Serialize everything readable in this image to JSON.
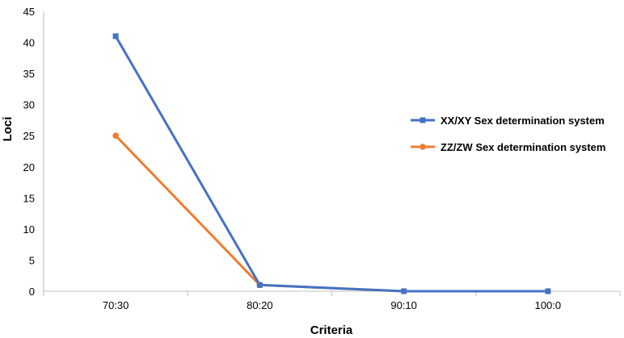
{
  "chart_data": {
    "type": "line",
    "categories": [
      "70:30",
      "80:20",
      "90:10",
      "100:0"
    ],
    "series": [
      {
        "name": "XX/XY Sex determination system",
        "values": [
          41,
          1,
          0,
          0
        ],
        "color": "#4472c4",
        "marker": "square"
      },
      {
        "name": "ZZ/ZW Sex determination system",
        "values": [
          25,
          1,
          0,
          0
        ],
        "color": "#ed7d31",
        "marker": "circle"
      }
    ],
    "xlabel": "Criteria",
    "ylabel": "Loci",
    "ylim": [
      0,
      45
    ],
    "yticks": [
      "0",
      "5",
      "10",
      "15",
      "20",
      "25",
      "30",
      "35",
      "40",
      "45"
    ],
    "grid": false,
    "legend": "right"
  }
}
